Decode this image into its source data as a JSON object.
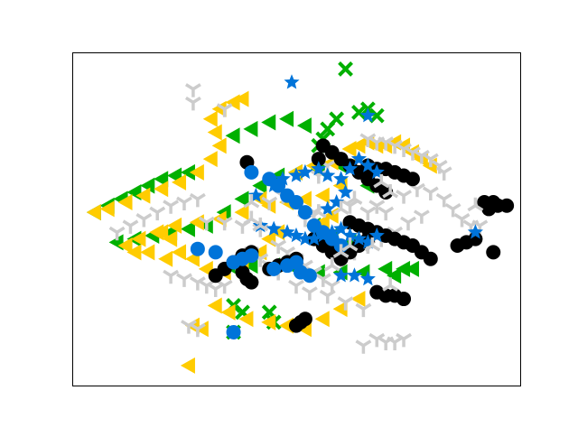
{
  "chart_data": {
    "type": "scatter",
    "title": "",
    "xlabel": "",
    "ylabel": "",
    "xlim": [
      0,
      100
    ],
    "ylim": [
      0,
      100
    ],
    "grid": false,
    "legend": "none",
    "ticks_shown": false,
    "series": [
      {
        "color": "#00b000",
        "marker": "triangle-left",
        "points": [
          [
            5,
            52
          ],
          [
            8,
            54
          ],
          [
            11,
            56
          ],
          [
            14,
            58
          ],
          [
            17,
            60
          ],
          [
            20,
            62
          ],
          [
            23,
            63
          ],
          [
            26,
            64
          ],
          [
            10,
            43
          ],
          [
            14,
            44
          ],
          [
            18,
            45
          ],
          [
            22,
            46
          ],
          [
            26,
            47
          ],
          [
            30,
            48
          ],
          [
            34,
            52
          ],
          [
            38,
            56
          ],
          [
            42,
            60
          ],
          [
            46,
            63
          ],
          [
            50,
            64
          ],
          [
            55,
            65
          ],
          [
            60,
            66
          ],
          [
            64,
            64
          ],
          [
            66,
            60
          ],
          [
            36,
            75
          ],
          [
            40,
            77
          ],
          [
            44,
            79
          ],
          [
            48,
            80
          ],
          [
            52,
            78
          ],
          [
            35,
            36
          ],
          [
            40,
            36
          ],
          [
            45,
            36
          ],
          [
            50,
            35
          ],
          [
            55,
            34
          ],
          [
            60,
            34
          ],
          [
            65,
            34
          ],
          [
            70,
            35
          ],
          [
            72,
            33
          ],
          [
            74,
            35
          ],
          [
            76,
            35
          ],
          [
            62,
            43
          ],
          [
            58,
            45
          ],
          [
            54,
            48
          ]
        ]
      },
      {
        "color": "#00b000",
        "marker": "x",
        "points": [
          [
            61,
            95
          ],
          [
            64,
            82
          ],
          [
            66,
            83
          ],
          [
            68,
            81
          ],
          [
            36,
            24
          ],
          [
            38,
            22
          ],
          [
            44,
            22
          ],
          [
            45,
            19
          ],
          [
            36,
            16
          ],
          [
            55,
            72
          ],
          [
            56,
            74
          ],
          [
            57,
            77
          ],
          [
            59,
            80
          ]
        ]
      },
      {
        "color": "#ffcc00",
        "marker": "triangle-left",
        "points": [
          [
            5,
            52
          ],
          [
            8,
            53
          ],
          [
            12,
            55
          ],
          [
            16,
            57
          ],
          [
            20,
            59
          ],
          [
            24,
            61
          ],
          [
            28,
            64
          ],
          [
            31,
            68
          ],
          [
            33,
            72
          ],
          [
            32,
            76
          ],
          [
            31,
            80
          ],
          [
            33,
            83
          ],
          [
            36,
            85
          ],
          [
            38,
            86
          ],
          [
            12,
            42
          ],
          [
            15,
            44
          ],
          [
            19,
            46
          ],
          [
            23,
            48
          ],
          [
            28,
            49
          ],
          [
            33,
            50
          ],
          [
            38,
            52
          ],
          [
            42,
            56
          ],
          [
            46,
            60
          ],
          [
            50,
            64
          ],
          [
            54,
            66
          ],
          [
            58,
            67
          ],
          [
            62,
            66
          ],
          [
            60,
            60
          ],
          [
            56,
            57
          ],
          [
            52,
            56
          ],
          [
            48,
            55
          ],
          [
            44,
            54
          ],
          [
            32,
            24
          ],
          [
            35,
            22
          ],
          [
            39,
            20
          ],
          [
            44,
            19
          ],
          [
            48,
            18
          ],
          [
            52,
            17
          ],
          [
            56,
            20
          ],
          [
            60,
            23
          ],
          [
            64,
            26
          ],
          [
            20,
            46
          ],
          [
            22,
            44
          ],
          [
            24,
            40
          ],
          [
            27,
            38
          ],
          [
            30,
            35
          ],
          [
            34,
            34
          ],
          [
            38,
            36
          ],
          [
            42,
            40
          ],
          [
            44,
            44
          ],
          [
            46,
            46
          ],
          [
            26,
            6
          ],
          [
            14,
            40
          ],
          [
            17,
            40
          ],
          [
            21,
            38
          ],
          [
            27,
            18
          ],
          [
            29,
            17
          ],
          [
            62,
            71
          ],
          [
            64,
            72
          ],
          [
            66,
            73
          ],
          [
            68,
            72
          ],
          [
            70,
            72
          ],
          [
            72,
            73
          ],
          [
            74,
            72
          ],
          [
            76,
            70
          ],
          [
            78,
            68
          ],
          [
            80,
            66
          ],
          [
            56,
            49
          ],
          [
            58,
            51
          ]
        ]
      },
      {
        "color": "#cccccc",
        "marker": "tri-down",
        "points": [
          [
            66,
            74
          ],
          [
            68,
            73
          ],
          [
            70,
            73
          ],
          [
            72,
            72
          ],
          [
            74,
            71
          ],
          [
            76,
            70
          ],
          [
            78,
            69
          ],
          [
            80,
            68
          ],
          [
            82,
            66
          ],
          [
            83,
            64
          ],
          [
            10,
            46
          ],
          [
            13,
            48
          ],
          [
            16,
            50
          ],
          [
            19,
            52
          ],
          [
            22,
            54
          ],
          [
            25,
            55
          ],
          [
            28,
            56
          ],
          [
            30,
            49
          ],
          [
            34,
            49
          ],
          [
            38,
            48
          ],
          [
            42,
            47
          ],
          [
            46,
            42
          ],
          [
            48,
            40
          ],
          [
            50,
            38
          ],
          [
            52,
            36
          ],
          [
            54,
            34
          ],
          [
            56,
            32
          ],
          [
            58,
            30
          ],
          [
            22,
            33
          ],
          [
            25,
            32
          ],
          [
            28,
            31
          ],
          [
            30,
            30
          ],
          [
            32,
            29
          ],
          [
            34,
            30
          ],
          [
            74,
            57
          ],
          [
            77,
            59
          ],
          [
            80,
            58
          ],
          [
            83,
            56
          ],
          [
            85,
            53
          ],
          [
            87,
            50
          ],
          [
            89,
            48
          ],
          [
            91,
            48
          ],
          [
            78,
            51
          ],
          [
            75,
            49
          ],
          [
            72,
            46
          ],
          [
            69,
            44
          ],
          [
            66,
            42
          ],
          [
            63,
            40
          ],
          [
            60,
            38
          ],
          [
            58,
            40
          ],
          [
            56,
            42
          ],
          [
            40,
            40
          ],
          [
            42,
            38
          ],
          [
            44,
            36
          ],
          [
            46,
            34
          ],
          [
            50,
            30
          ],
          [
            53,
            28
          ],
          [
            57,
            27
          ],
          [
            61,
            25
          ],
          [
            65,
            23
          ],
          [
            27,
            89
          ],
          [
            27,
            85
          ],
          [
            34,
            83
          ],
          [
            55,
            63
          ],
          [
            57,
            66
          ],
          [
            44,
            55
          ],
          [
            47,
            57
          ],
          [
            52,
            50
          ],
          [
            54,
            52
          ],
          [
            66,
            52
          ],
          [
            68,
            54
          ],
          [
            70,
            52
          ],
          [
            26,
            18
          ],
          [
            28,
            17
          ],
          [
            68,
            14
          ],
          [
            70,
            13
          ],
          [
            72,
            13
          ],
          [
            74,
            14
          ],
          [
            65,
            12
          ],
          [
            62,
            54
          ]
        ]
      },
      {
        "color": "#000000",
        "marker": "circle",
        "points": [
          [
            39,
            67
          ],
          [
            55,
            68
          ],
          [
            56,
            72
          ],
          [
            58,
            70
          ],
          [
            60,
            68
          ],
          [
            62,
            66
          ],
          [
            64,
            64
          ],
          [
            66,
            62
          ],
          [
            68,
            60
          ],
          [
            70,
            58
          ],
          [
            66,
            66
          ],
          [
            68,
            65
          ],
          [
            70,
            65
          ],
          [
            72,
            64
          ],
          [
            74,
            63
          ],
          [
            76,
            62
          ],
          [
            62,
            49
          ],
          [
            64,
            48
          ],
          [
            66,
            47
          ],
          [
            68,
            46
          ],
          [
            70,
            45
          ],
          [
            72,
            44
          ],
          [
            74,
            43
          ],
          [
            76,
            42
          ],
          [
            78,
            40
          ],
          [
            80,
            38
          ],
          [
            54,
            44
          ],
          [
            56,
            42
          ],
          [
            58,
            40
          ],
          [
            60,
            38
          ],
          [
            62,
            40
          ],
          [
            64,
            42
          ],
          [
            66,
            44
          ],
          [
            32,
            33
          ],
          [
            34,
            35
          ],
          [
            36,
            37
          ],
          [
            38,
            39
          ],
          [
            40,
            40
          ],
          [
            38,
            34
          ],
          [
            39,
            32
          ],
          [
            40,
            31
          ],
          [
            44,
            35
          ],
          [
            46,
            36
          ],
          [
            48,
            37
          ],
          [
            50,
            38
          ],
          [
            68,
            28
          ],
          [
            70,
            27
          ],
          [
            72,
            27
          ],
          [
            74,
            26
          ],
          [
            50,
            18
          ],
          [
            51,
            19
          ],
          [
            52,
            20
          ],
          [
            86,
            42
          ],
          [
            88,
            43
          ],
          [
            90,
            44
          ],
          [
            92,
            55
          ],
          [
            93,
            53
          ],
          [
            94,
            55
          ],
          [
            95,
            54
          ],
          [
            97,
            54
          ],
          [
            94,
            40
          ]
        ]
      },
      {
        "color": "#0074d9",
        "marker": "circle",
        "points": [
          [
            28,
            41
          ],
          [
            32,
            40
          ],
          [
            40,
            64
          ],
          [
            44,
            62
          ],
          [
            46,
            60
          ],
          [
            48,
            57
          ],
          [
            50,
            55
          ],
          [
            52,
            52
          ],
          [
            54,
            48
          ],
          [
            56,
            46
          ],
          [
            58,
            44
          ],
          [
            60,
            42
          ],
          [
            36,
            37
          ],
          [
            38,
            38
          ],
          [
            40,
            39
          ],
          [
            45,
            35
          ],
          [
            48,
            36
          ],
          [
            50,
            37
          ],
          [
            51,
            34
          ],
          [
            53,
            33
          ],
          [
            36,
            16
          ]
        ]
      },
      {
        "color": "#0074d9",
        "marker": "star",
        "points": [
          [
            49,
            91
          ],
          [
            41,
            57
          ],
          [
            45,
            60
          ],
          [
            47,
            62
          ],
          [
            50,
            63
          ],
          [
            52,
            64
          ],
          [
            55,
            65
          ],
          [
            57,
            63
          ],
          [
            60,
            62
          ],
          [
            62,
            65
          ],
          [
            64,
            68
          ],
          [
            66,
            66
          ],
          [
            68,
            64
          ],
          [
            42,
            48
          ],
          [
            45,
            47
          ],
          [
            48,
            46
          ],
          [
            50,
            45
          ],
          [
            52,
            44
          ],
          [
            54,
            44
          ],
          [
            56,
            45
          ],
          [
            58,
            46
          ],
          [
            60,
            47
          ],
          [
            62,
            45
          ],
          [
            64,
            44
          ],
          [
            66,
            43
          ],
          [
            68,
            45
          ],
          [
            60,
            33
          ],
          [
            63,
            33
          ],
          [
            66,
            32
          ],
          [
            57,
            53
          ],
          [
            59,
            55
          ],
          [
            61,
            58
          ],
          [
            66,
            81
          ],
          [
            90,
            46
          ]
        ]
      },
      {
        "color": "#cccccc",
        "marker": "tri-up",
        "points": [
          [
            40,
            55
          ],
          [
            40,
            50
          ],
          [
            42,
            48
          ],
          [
            60,
            40
          ],
          [
            62,
            42
          ],
          [
            67,
            42
          ],
          [
            69,
            61
          ],
          [
            71,
            58
          ],
          [
            71,
            30
          ],
          [
            63,
            56
          ],
          [
            60,
            53
          ],
          [
            55,
            52
          ],
          [
            58,
            36
          ],
          [
            90,
            54
          ]
        ]
      }
    ]
  }
}
